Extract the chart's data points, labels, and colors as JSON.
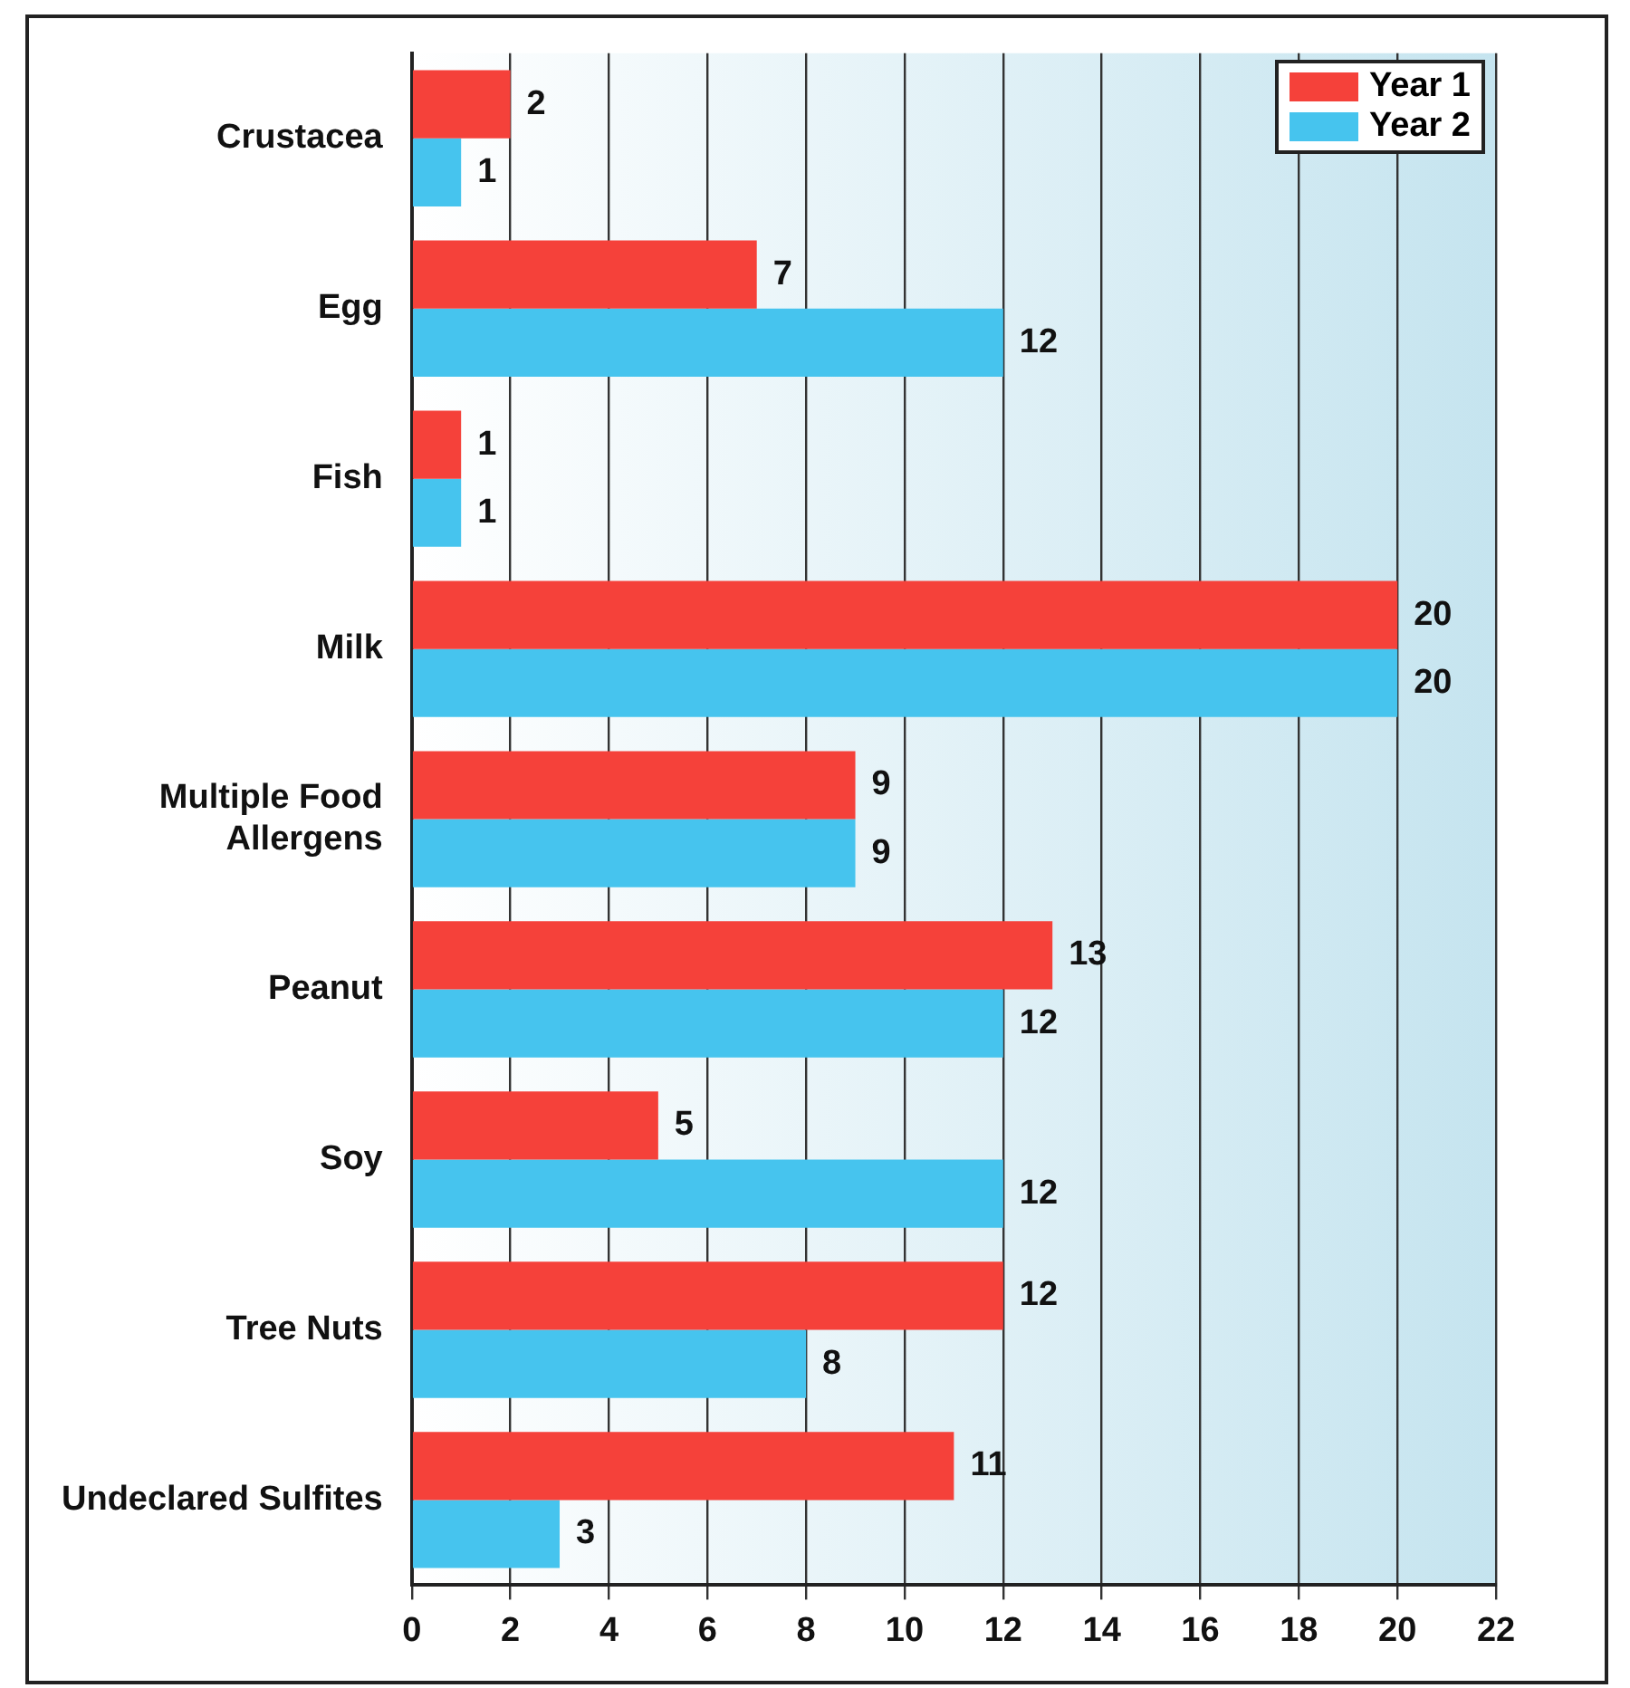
{
  "chart_data": {
    "type": "bar",
    "orientation": "horizontal",
    "categories": [
      "Crustacea",
      "Egg",
      "Fish",
      "Milk",
      "Multiple Food Allergens",
      "Peanut",
      "Soy",
      "Tree Nuts",
      "Undeclared Sulfites"
    ],
    "series": [
      {
        "name": "Year 1",
        "color": "#f5413a",
        "values": [
          2,
          7,
          1,
          20,
          9,
          13,
          5,
          12,
          11
        ]
      },
      {
        "name": "Year 2",
        "color": "#46c4ee",
        "values": [
          1,
          12,
          1,
          20,
          9,
          12,
          12,
          8,
          3
        ]
      }
    ],
    "xlim": [
      0,
      22
    ],
    "xticks": [
      0,
      2,
      4,
      6,
      8,
      10,
      12,
      14,
      16,
      18,
      20,
      22
    ],
    "grid": "x",
    "legend": "top right",
    "data_labels": true
  }
}
